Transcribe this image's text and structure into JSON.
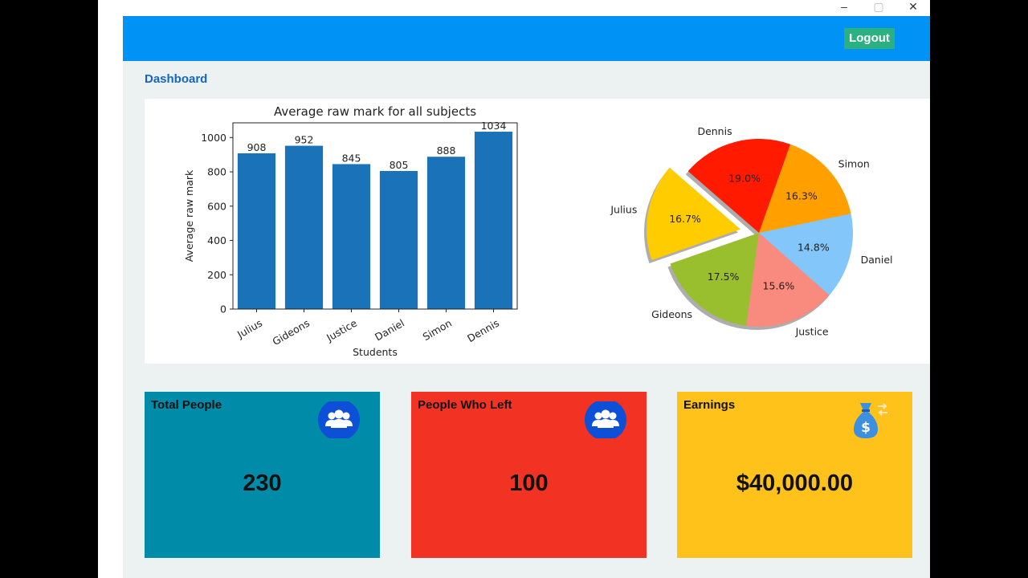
{
  "window_controls": {
    "minimize": "–",
    "maximize": "▢",
    "close": "✕"
  },
  "header": {
    "logout_label": "Logout",
    "bg": "#0092f5",
    "logout_bg": "#2bb07f"
  },
  "breadcrumb": {
    "title": "Dashboard"
  },
  "chart_data": [
    {
      "type": "bar",
      "title": "Average raw mark for all subjects",
      "xlabel": "Students",
      "ylabel": "Average raw mark",
      "categories": [
        "Julius",
        "Gideons",
        "Justice",
        "Daniel",
        "Simon",
        "Dennis"
      ],
      "values": [
        908,
        952,
        845,
        805,
        888,
        1034
      ],
      "data_labels": [
        "908",
        "952",
        "845",
        "805",
        "888",
        "1034"
      ],
      "yticks": [
        0,
        200,
        400,
        600,
        800,
        1000
      ],
      "ylim": [
        0,
        1085.7
      ],
      "grid": false,
      "color": "#1a72b8"
    },
    {
      "type": "pie",
      "labels": [
        "Julius",
        "Gideons",
        "Justice",
        "Daniel",
        "Simon",
        "Dennis"
      ],
      "percent_labels": [
        "16.7%",
        "17.5%",
        "15.6%",
        "14.8%",
        "16.3%",
        "19.0%"
      ],
      "values": [
        16.7,
        17.5,
        15.6,
        14.8,
        16.3,
        19.0
      ],
      "colors": [
        "#ffcc00",
        "#99bf2e",
        "#f88a7e",
        "#82c6fa",
        "#ffa000",
        "#ff1a00"
      ],
      "explode": [
        0.2,
        0,
        0,
        0,
        0,
        0
      ],
      "startangle": 139,
      "shadow": true
    }
  ],
  "cards": [
    {
      "title": "Total People",
      "value": "230",
      "bg": "#008ba8",
      "icon": "users-icon"
    },
    {
      "title": "People Who Left",
      "value": "100",
      "bg": "#f23222",
      "icon": "users-icon"
    },
    {
      "title": "Earnings",
      "value": "$40,000.00",
      "bg": "#ffc21a",
      "icon": "money-bag-icon"
    }
  ]
}
